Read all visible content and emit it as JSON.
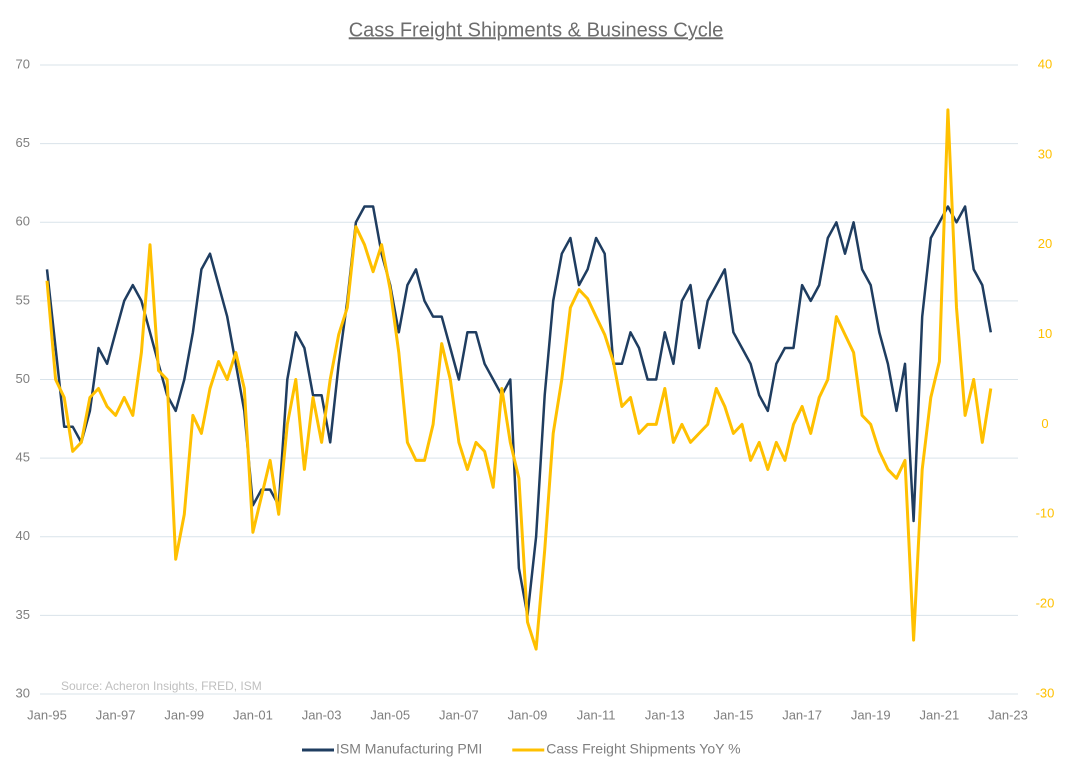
{
  "chart_data": {
    "type": "line",
    "title": "Cass Freight Shipments & Business Cycle",
    "annotation": "Source: Acheron Insights, FRED, ISM",
    "x": [
      "1995-01",
      "1995-04",
      "1995-07",
      "1995-10",
      "1996-01",
      "1996-04",
      "1996-07",
      "1996-10",
      "1997-01",
      "1997-04",
      "1997-07",
      "1997-10",
      "1998-01",
      "1998-04",
      "1998-07",
      "1998-10",
      "1999-01",
      "1999-04",
      "1999-07",
      "1999-10",
      "2000-01",
      "2000-04",
      "2000-07",
      "2000-10",
      "2001-01",
      "2001-04",
      "2001-07",
      "2001-10",
      "2002-01",
      "2002-04",
      "2002-07",
      "2002-10",
      "2003-01",
      "2003-04",
      "2003-07",
      "2003-10",
      "2004-01",
      "2004-04",
      "2004-07",
      "2004-10",
      "2005-01",
      "2005-04",
      "2005-07",
      "2005-10",
      "2006-01",
      "2006-04",
      "2006-07",
      "2006-10",
      "2007-01",
      "2007-04",
      "2007-07",
      "2007-10",
      "2008-01",
      "2008-04",
      "2008-07",
      "2008-10",
      "2009-01",
      "2009-04",
      "2009-07",
      "2009-10",
      "2010-01",
      "2010-04",
      "2010-07",
      "2010-10",
      "2011-01",
      "2011-04",
      "2011-07",
      "2011-10",
      "2012-01",
      "2012-04",
      "2012-07",
      "2012-10",
      "2013-01",
      "2013-04",
      "2013-07",
      "2013-10",
      "2014-01",
      "2014-04",
      "2014-07",
      "2014-10",
      "2015-01",
      "2015-04",
      "2015-07",
      "2015-10",
      "2016-01",
      "2016-04",
      "2016-07",
      "2016-10",
      "2017-01",
      "2017-04",
      "2017-07",
      "2017-10",
      "2018-01",
      "2018-04",
      "2018-07",
      "2018-10",
      "2019-01",
      "2019-04",
      "2019-07",
      "2019-10",
      "2020-01",
      "2020-04",
      "2020-07",
      "2020-10",
      "2021-01",
      "2021-04",
      "2021-07",
      "2021-10",
      "2022-01",
      "2022-04",
      "2022-07"
    ],
    "series": [
      {
        "name": "ISM Manufacturing PMI",
        "color": "#1f3d60",
        "axis": "y",
        "values": [
          57,
          52,
          47,
          47,
          46,
          48,
          52,
          51,
          53,
          55,
          56,
          55,
          53,
          51,
          49,
          48,
          50,
          53,
          57,
          58,
          56,
          54,
          51,
          48,
          42,
          43,
          43,
          42,
          50,
          53,
          52,
          49,
          49,
          46,
          51,
          55,
          60,
          61,
          61,
          58,
          56,
          53,
          56,
          57,
          55,
          54,
          54,
          52,
          50,
          53,
          53,
          51,
          50,
          49,
          50,
          38,
          35,
          40,
          49,
          55,
          58,
          59,
          56,
          57,
          59,
          58,
          51,
          51,
          53,
          52,
          50,
          50,
          53,
          51,
          55,
          56,
          52,
          55,
          56,
          57,
          53,
          52,
          51,
          49,
          48,
          51,
          52,
          52,
          56,
          55,
          56,
          59,
          60,
          58,
          60,
          57,
          56,
          53,
          51,
          48,
          51,
          41,
          54,
          59,
          60,
          61,
          60,
          61,
          57,
          56,
          53
        ]
      },
      {
        "name": "Cass Freight Shipments YoY %",
        "color": "#ffc000",
        "axis": "y2",
        "values": [
          16,
          5,
          3,
          -3,
          -2,
          3,
          4,
          2,
          1,
          3,
          1,
          8,
          20,
          6,
          5,
          -15,
          -10,
          1,
          -1,
          4,
          7,
          5,
          8,
          4,
          -12,
          -8,
          -4,
          -10,
          0,
          5,
          -5,
          3,
          -2,
          5,
          10,
          13,
          22,
          20,
          17,
          20,
          15,
          8,
          -2,
          -4,
          -4,
          0,
          9,
          5,
          -2,
          -5,
          -2,
          -3,
          -7,
          4,
          -2,
          -6,
          -22,
          -25,
          -14,
          -1,
          5,
          13,
          15,
          14,
          12,
          10,
          7,
          2,
          3,
          -1,
          0,
          0,
          4,
          -2,
          0,
          -2,
          -1,
          0,
          4,
          2,
          -1,
          0,
          -4,
          -2,
          -5,
          -2,
          -4,
          0,
          2,
          -1,
          3,
          5,
          12,
          10,
          8,
          1,
          0,
          -3,
          -5,
          -6,
          -4,
          -24,
          -5,
          3,
          7,
          35,
          13,
          1,
          5,
          -2,
          4
        ]
      }
    ],
    "xlim": [
      "1995-01",
      "2023-01"
    ],
    "xticks": [
      {
        "value": "1995-01",
        "label": "Jan-95"
      },
      {
        "value": "1997-01",
        "label": "Jan-97"
      },
      {
        "value": "1999-01",
        "label": "Jan-99"
      },
      {
        "value": "2001-01",
        "label": "Jan-01"
      },
      {
        "value": "2003-01",
        "label": "Jan-03"
      },
      {
        "value": "2005-01",
        "label": "Jan-05"
      },
      {
        "value": "2007-01",
        "label": "Jan-07"
      },
      {
        "value": "2009-01",
        "label": "Jan-09"
      },
      {
        "value": "2011-01",
        "label": "Jan-11"
      },
      {
        "value": "2013-01",
        "label": "Jan-13"
      },
      {
        "value": "2015-01",
        "label": "Jan-15"
      },
      {
        "value": "2017-01",
        "label": "Jan-17"
      },
      {
        "value": "2019-01",
        "label": "Jan-19"
      },
      {
        "value": "2021-01",
        "label": "Jan-21"
      },
      {
        "value": "2023-01",
        "label": "Jan-23"
      }
    ],
    "ylim": [
      30,
      70
    ],
    "yticks": [
      30,
      35,
      40,
      45,
      50,
      55,
      60,
      65,
      70
    ],
    "y2lim": [
      -30,
      40
    ],
    "y2ticks": [
      -30,
      -20,
      -10,
      0,
      10,
      20,
      30,
      40
    ],
    "grid": true,
    "legend": "bottom"
  }
}
